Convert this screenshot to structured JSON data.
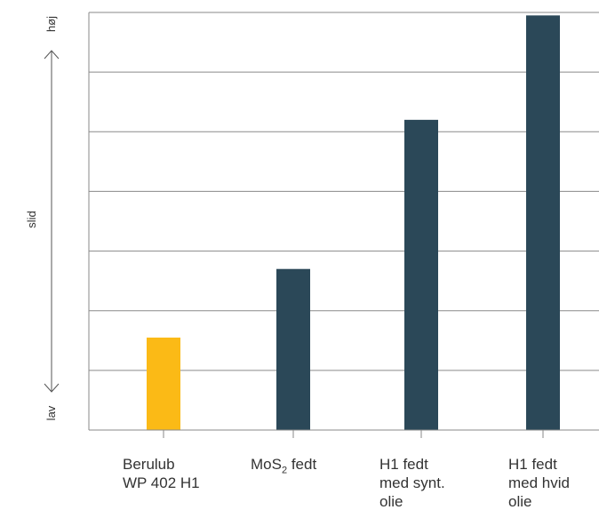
{
  "chart_data": {
    "type": "bar",
    "categories": [
      {
        "lines": [
          "Berulub",
          "WP 402 H1"
        ],
        "sub": ""
      },
      {
        "lines": [
          "MoS",
          "fedt"
        ],
        "sub": "2"
      },
      {
        "lines": [
          "H1 fedt",
          "med synt.",
          "olie"
        ],
        "sub": ""
      },
      {
        "lines": [
          "H1 fedt",
          "med hvid",
          "olie"
        ],
        "sub": ""
      }
    ],
    "values": [
      1.55,
      2.7,
      5.2,
      6.95
    ],
    "colors": [
      "#FBBA16",
      "#2B4858",
      "#2B4858",
      "#2B4858"
    ],
    "ylim": [
      0,
      7
    ],
    "grid": true,
    "ylabel": "slid",
    "y_high_label": "høj",
    "y_low_label": "lav"
  },
  "colors": {
    "grid": "#8a8a8a",
    "text": "#333333"
  }
}
